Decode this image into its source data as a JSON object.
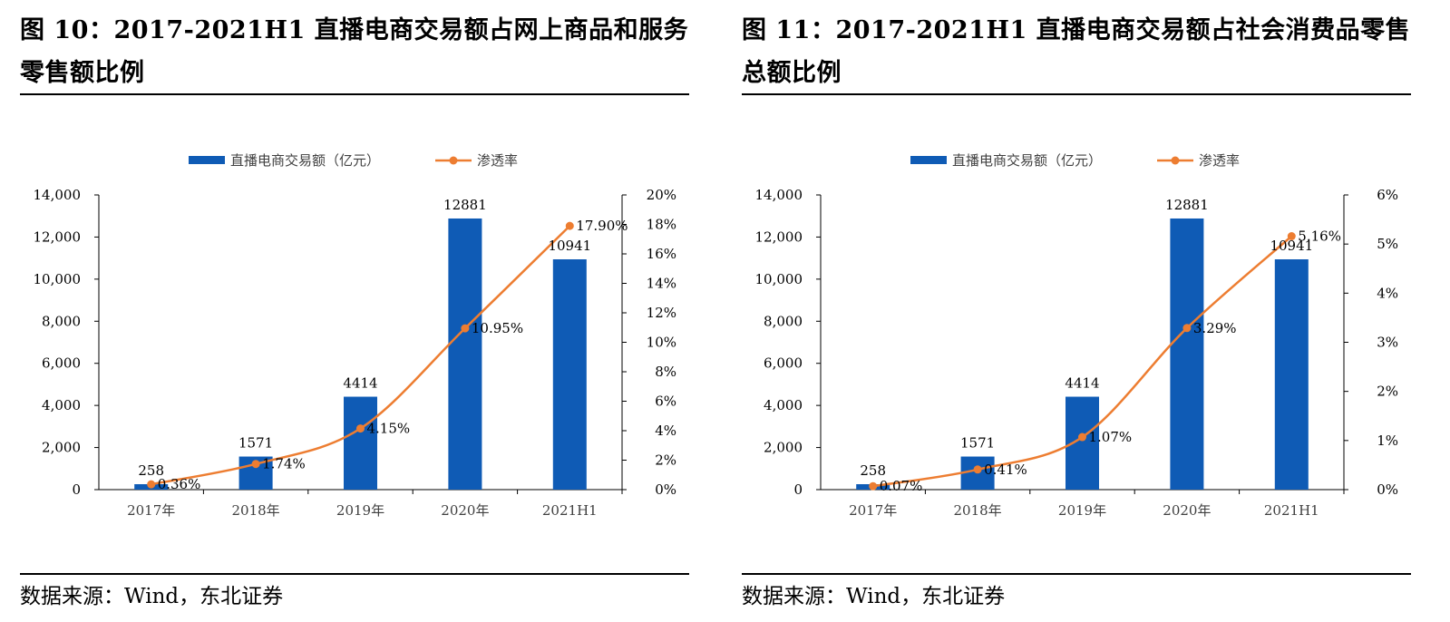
{
  "figures": [
    {
      "title": "图 10：2017-2021H1 直播电商交易额占网上商品和服务零售额比例",
      "source": "数据来源：Wind，东北证券",
      "chart_data": {
        "type": "bar",
        "categories": [
          "2017年",
          "2018年",
          "2019年",
          "2020年",
          "2021H1"
        ],
        "series": [
          {
            "name": "直播电商交易额（亿元）",
            "type": "bar",
            "axis": "left",
            "values": [
              258,
              1571,
              4414,
              12881,
              10941
            ],
            "labels": [
              "258",
              "1571",
              "4414",
              "12881",
              "10941"
            ]
          },
          {
            "name": "渗透率",
            "type": "line",
            "axis": "right",
            "values": [
              0.36,
              1.74,
              4.15,
              10.95,
              17.9
            ],
            "labels": [
              "0.36%",
              "1.74%",
              "4.15%",
              "10.95%",
              "17.90%"
            ]
          }
        ],
        "y_left": {
          "min": 0,
          "max": 14000,
          "ticks": [
            "0",
            "2,000",
            "4,000",
            "6,000",
            "8,000",
            "10,000",
            "12,000",
            "14,000"
          ]
        },
        "y_right": {
          "min": 0,
          "max": 20,
          "ticks": [
            "0%",
            "2%",
            "4%",
            "6%",
            "8%",
            "10%",
            "12%",
            "14%",
            "16%",
            "18%",
            "20%"
          ]
        },
        "legend_position": "top",
        "colors": {
          "bar": "#0f5bb5",
          "line": "#ed7d31"
        }
      }
    },
    {
      "title": "图 11：2017-2021H1 直播电商交易额占社会消费品零售总额比例",
      "source": "数据来源：Wind，东北证券",
      "chart_data": {
        "type": "bar",
        "categories": [
          "2017年",
          "2018年",
          "2019年",
          "2020年",
          "2021H1"
        ],
        "series": [
          {
            "name": "直播电商交易额（亿元）",
            "type": "bar",
            "axis": "left",
            "values": [
              258,
              1571,
              4414,
              12881,
              10941
            ],
            "labels": [
              "258",
              "1571",
              "4414",
              "12881",
              "10941"
            ]
          },
          {
            "name": "渗透率",
            "type": "line",
            "axis": "right",
            "values": [
              0.07,
              0.41,
              1.07,
              3.29,
              5.16
            ],
            "labels": [
              "0.07%",
              "0.41%",
              "1.07%",
              "3.29%",
              "5.16%"
            ]
          }
        ],
        "y_left": {
          "min": 0,
          "max": 14000,
          "ticks": [
            "0",
            "2,000",
            "4,000",
            "6,000",
            "8,000",
            "10,000",
            "12,000",
            "14,000"
          ]
        },
        "y_right": {
          "min": 0,
          "max": 6,
          "ticks": [
            "0%",
            "1%",
            "2%",
            "3%",
            "4%",
            "5%",
            "6%"
          ]
        },
        "legend_position": "top",
        "colors": {
          "bar": "#0f5bb5",
          "line": "#ed7d31"
        }
      }
    }
  ]
}
